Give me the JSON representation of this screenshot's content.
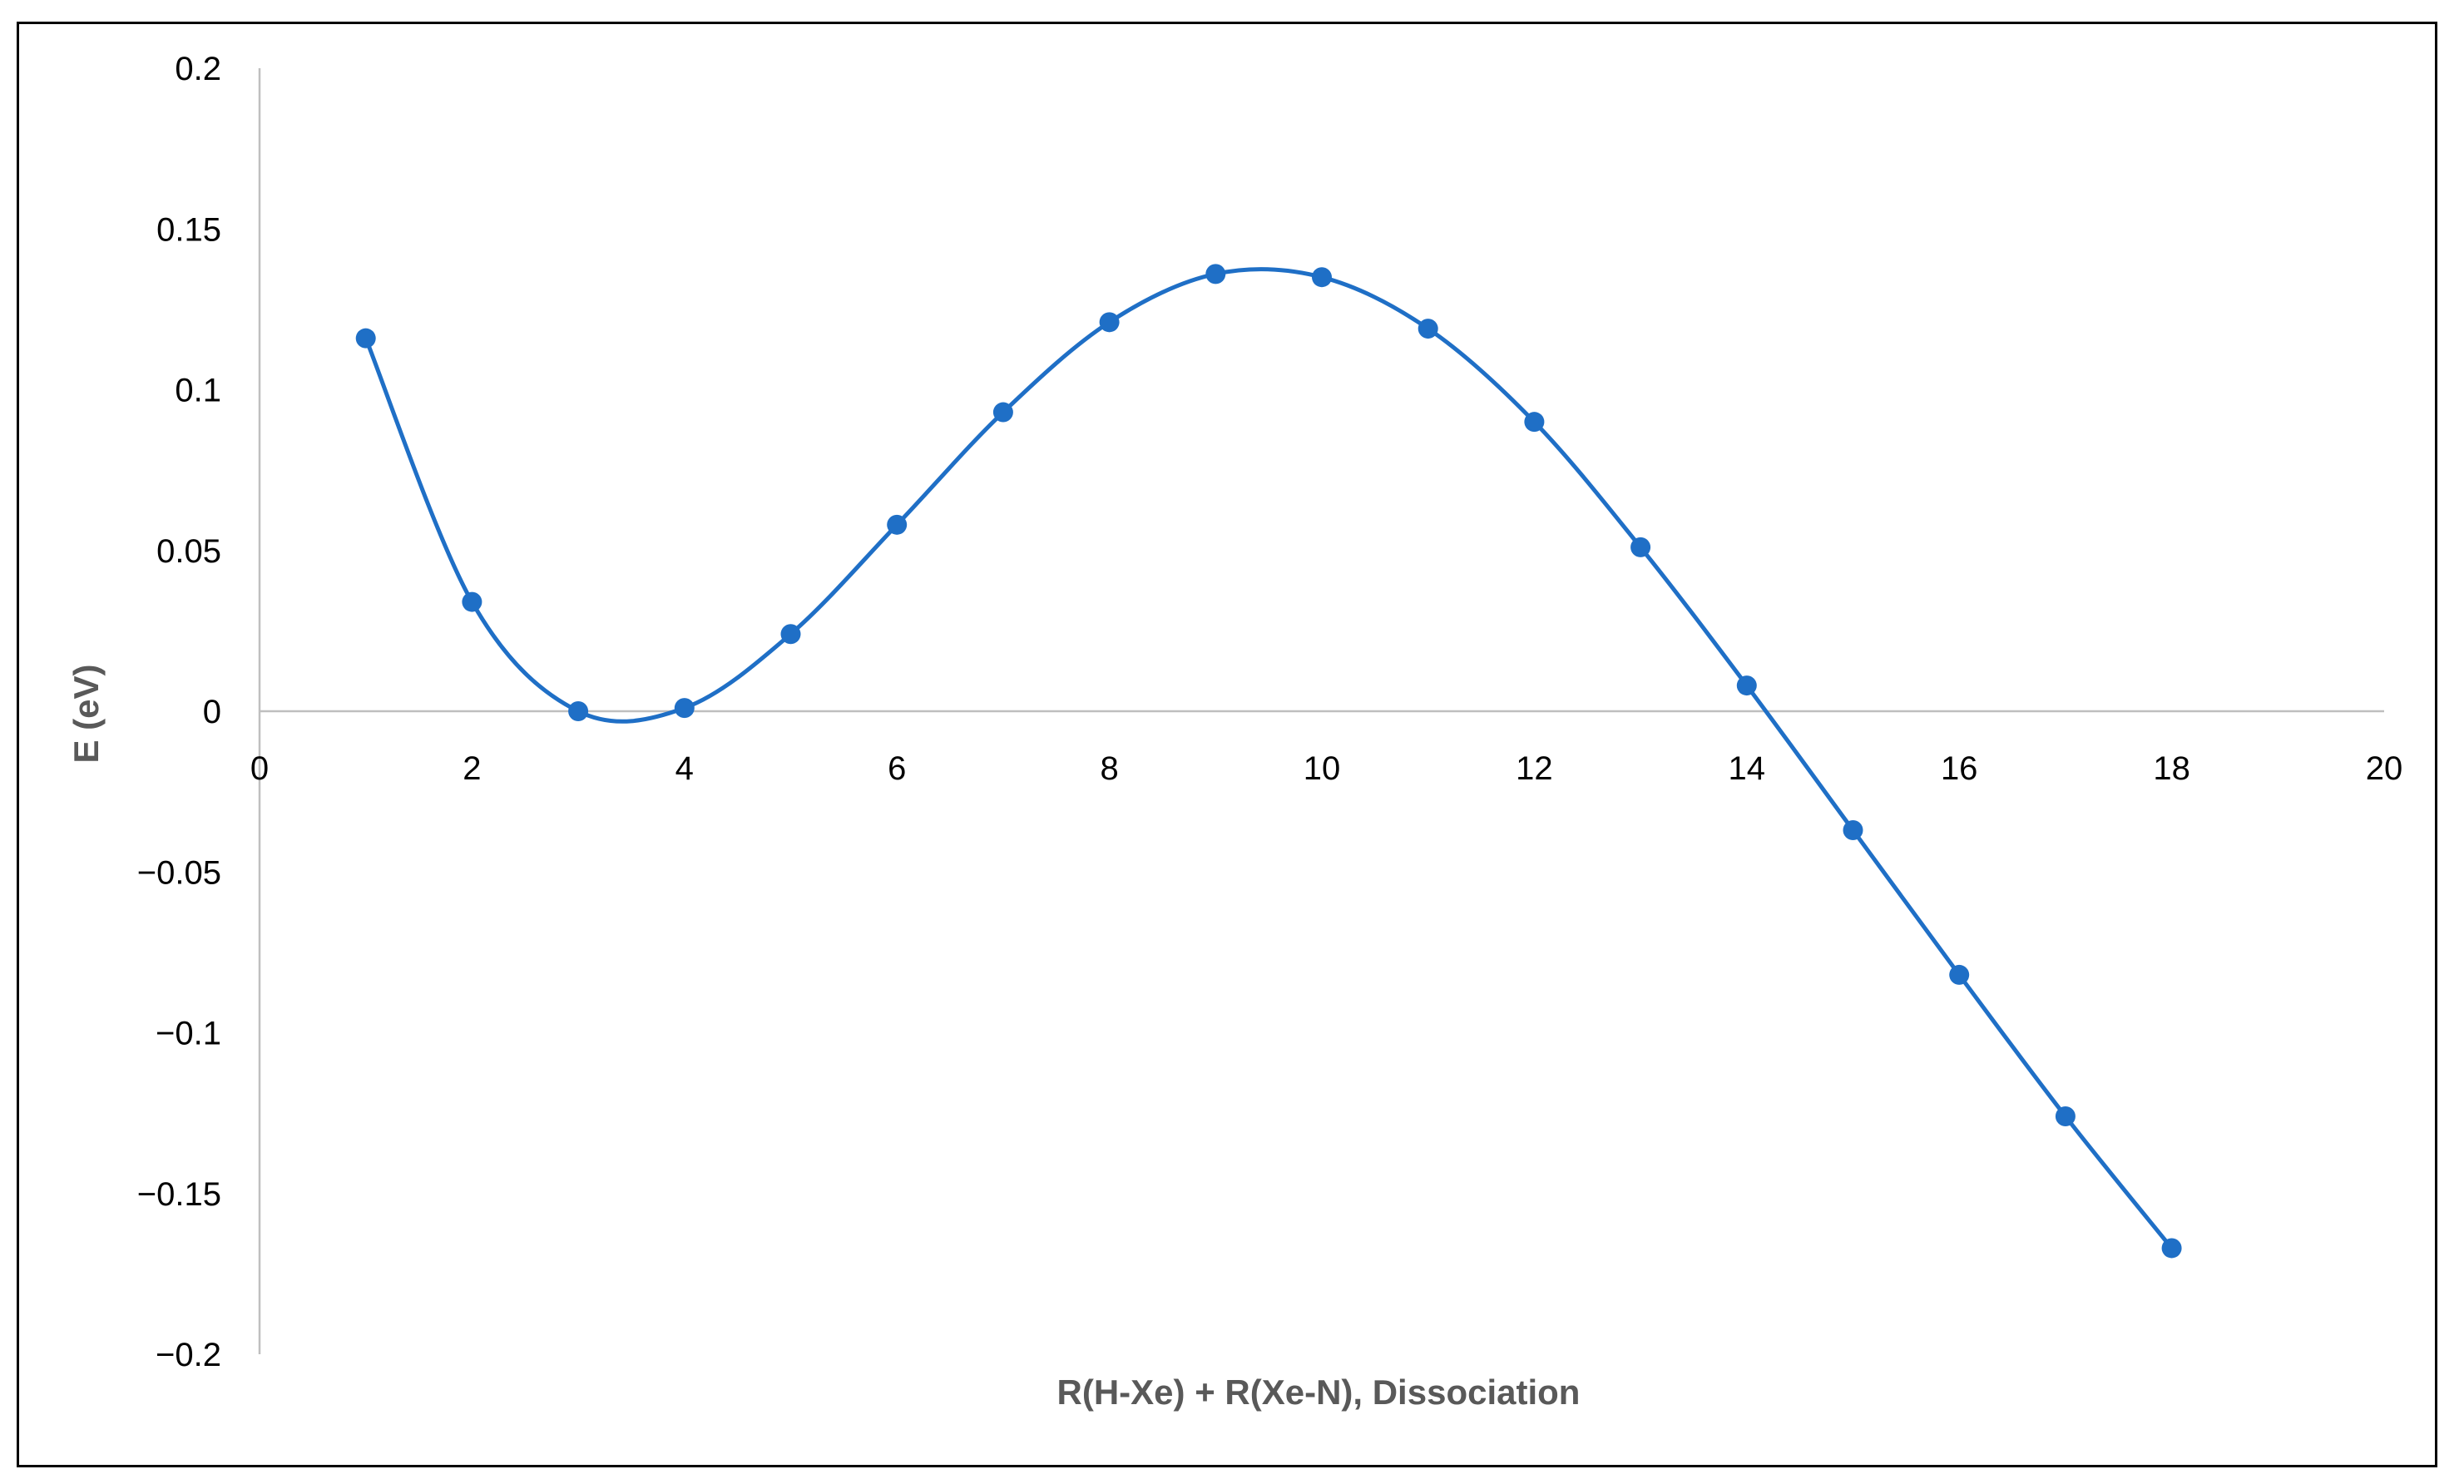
{
  "chart_data": {
    "type": "scatter",
    "title": "",
    "xlabel": "R(H-Xe) + R(Xe-N), Dissociation",
    "ylabel": "E (eV)",
    "xlim": [
      0,
      20
    ],
    "ylim": [
      -0.2,
      0.2
    ],
    "x_ticks": [
      0,
      2,
      4,
      6,
      8,
      10,
      12,
      14,
      16,
      18,
      20
    ],
    "y_ticks": [
      0.2,
      0.15,
      0.1,
      0.05,
      0,
      -0.05,
      -0.1,
      -0.15,
      -0.2
    ],
    "x_tick_labels": [
      "0",
      "2",
      "4",
      "6",
      "8",
      "10",
      "12",
      "14",
      "16",
      "18",
      "20"
    ],
    "y_tick_labels": [
      "0.2",
      "0.15",
      "0.1",
      "0.05",
      "0",
      "−0.05",
      "−0.1",
      "−0.15",
      "−0.2"
    ],
    "grid": false,
    "legend": "none",
    "smooth_line": true,
    "series": [
      {
        "x": [
          1,
          2,
          3,
          4,
          5,
          6,
          7,
          8,
          9,
          10,
          11,
          12,
          13,
          14,
          15,
          16,
          17,
          18
        ],
        "y": [
          0.116,
          0.034,
          0.0,
          0.001,
          0.024,
          0.058,
          0.093,
          0.121,
          0.136,
          0.135,
          0.119,
          0.09,
          0.051,
          0.008,
          -0.037,
          -0.082,
          -0.126,
          -0.167
        ],
        "color": "#1F6FC6"
      }
    ],
    "axis_line_color": "#BFBFBF"
  }
}
